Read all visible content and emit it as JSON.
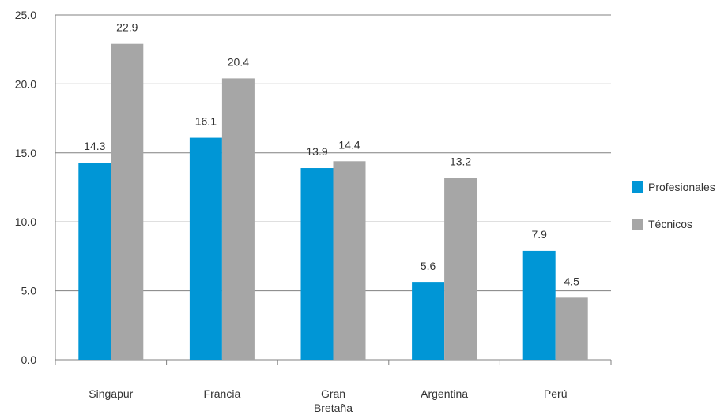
{
  "chart_data": {
    "type": "bar",
    "categories": [
      "Singapur",
      "Francia",
      "Gran Bretaña",
      "Argentina",
      "Perú"
    ],
    "category_lines": [
      [
        "Singapur"
      ],
      [
        "Francia"
      ],
      [
        "Gran",
        "Bretaña"
      ],
      [
        "Argentina"
      ],
      [
        "Perú"
      ]
    ],
    "series": [
      {
        "name": "Profesionales",
        "values": [
          14.3,
          16.1,
          13.9,
          5.6,
          7.9
        ],
        "labels": [
          "14.3",
          "16.1",
          "13.9",
          "5.6",
          "7.9"
        ],
        "color": "#0096d6"
      },
      {
        "name": "Técnicos",
        "values": [
          22.9,
          20.4,
          14.4,
          13.2,
          4.5
        ],
        "labels": [
          "22.9",
          "20.4",
          "14.4",
          "13.2",
          "4.5"
        ],
        "color": "#a6a6a6"
      }
    ],
    "ylim": [
      0,
      25
    ],
    "yticks": [
      "0.0",
      "5.0",
      "10.0",
      "15.0",
      "20.0",
      "25.0"
    ],
    "ytick_values": [
      0,
      5,
      10,
      15,
      20,
      25
    ],
    "grid": true,
    "legend_position": "right",
    "title": "",
    "xlabel": "",
    "ylabel": ""
  }
}
